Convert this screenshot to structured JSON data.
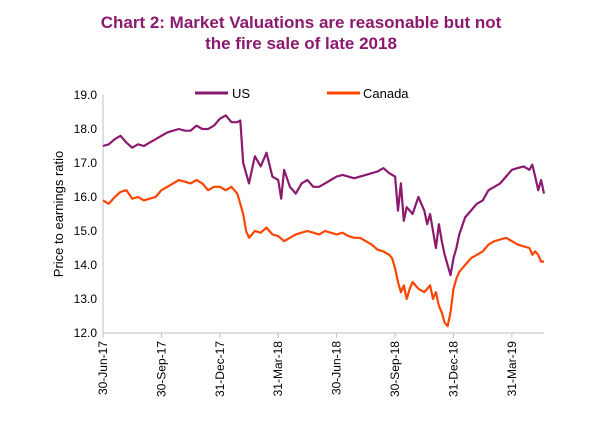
{
  "chart_data": {
    "type": "line",
    "title_line1": "Chart 2: Market Valuations are reasonable but not",
    "title_line2": "the fire sale of late 2018",
    "xlabel": "",
    "ylabel": "Price to earnings ratio",
    "ylim": [
      12.0,
      19.0
    ],
    "yticks": [
      "12.0",
      "13.0",
      "14.0",
      "15.0",
      "16.0",
      "17.0",
      "18.0",
      "19.0"
    ],
    "xticks": [
      "30-Jun-17",
      "30-Sep-17",
      "31-Dec-17",
      "31-Mar-18",
      "30-Jun-18",
      "30-Sep-18",
      "31-Dec-18",
      "31-Mar-19"
    ],
    "x_range": [
      0,
      7.55
    ],
    "legend": [
      {
        "name": "US",
        "color": "#8b1a6e"
      },
      {
        "name": "Canada",
        "color": "#ff4500"
      }
    ],
    "series": [
      {
        "name": "US",
        "color": "#8b1a6e",
        "points": [
          [
            0,
            17.5
          ],
          [
            0.1,
            17.55
          ],
          [
            0.2,
            17.7
          ],
          [
            0.3,
            17.8
          ],
          [
            0.4,
            17.6
          ],
          [
            0.5,
            17.45
          ],
          [
            0.6,
            17.55
          ],
          [
            0.7,
            17.5
          ],
          [
            0.8,
            17.6
          ],
          [
            0.9,
            17.7
          ],
          [
            1.0,
            17.8
          ],
          [
            1.1,
            17.9
          ],
          [
            1.2,
            17.95
          ],
          [
            1.3,
            18.0
          ],
          [
            1.4,
            17.95
          ],
          [
            1.5,
            17.95
          ],
          [
            1.6,
            18.1
          ],
          [
            1.7,
            18.0
          ],
          [
            1.8,
            18.0
          ],
          [
            1.9,
            18.1
          ],
          [
            2.0,
            18.3
          ],
          [
            2.1,
            18.4
          ],
          [
            2.2,
            18.2
          ],
          [
            2.3,
            18.2
          ],
          [
            2.35,
            18.25
          ],
          [
            2.4,
            17.0
          ],
          [
            2.5,
            16.4
          ],
          [
            2.55,
            16.8
          ],
          [
            2.6,
            17.2
          ],
          [
            2.7,
            16.9
          ],
          [
            2.8,
            17.3
          ],
          [
            2.9,
            16.6
          ],
          [
            3.0,
            16.5
          ],
          [
            3.05,
            15.95
          ],
          [
            3.1,
            16.8
          ],
          [
            3.2,
            16.3
          ],
          [
            3.3,
            16.1
          ],
          [
            3.4,
            16.4
          ],
          [
            3.5,
            16.5
          ],
          [
            3.6,
            16.3
          ],
          [
            3.7,
            16.3
          ],
          [
            3.8,
            16.4
          ],
          [
            3.9,
            16.5
          ],
          [
            4.0,
            16.6
          ],
          [
            4.1,
            16.65
          ],
          [
            4.2,
            16.6
          ],
          [
            4.3,
            16.55
          ],
          [
            4.4,
            16.6
          ],
          [
            4.5,
            16.65
          ],
          [
            4.6,
            16.7
          ],
          [
            4.7,
            16.75
          ],
          [
            4.8,
            16.85
          ],
          [
            4.9,
            16.7
          ],
          [
            5.0,
            16.6
          ],
          [
            5.05,
            15.6
          ],
          [
            5.1,
            16.4
          ],
          [
            5.15,
            15.3
          ],
          [
            5.2,
            15.7
          ],
          [
            5.3,
            15.5
          ],
          [
            5.4,
            16.0
          ],
          [
            5.5,
            15.6
          ],
          [
            5.55,
            15.2
          ],
          [
            5.6,
            15.5
          ],
          [
            5.7,
            14.5
          ],
          [
            5.75,
            15.2
          ],
          [
            5.8,
            14.7
          ],
          [
            5.85,
            14.3
          ],
          [
            5.9,
            14.0
          ],
          [
            5.95,
            13.7
          ],
          [
            6.0,
            14.2
          ],
          [
            6.05,
            14.5
          ],
          [
            6.1,
            14.9
          ],
          [
            6.2,
            15.4
          ],
          [
            6.3,
            15.6
          ],
          [
            6.4,
            15.8
          ],
          [
            6.5,
            15.9
          ],
          [
            6.6,
            16.2
          ],
          [
            6.7,
            16.3
          ],
          [
            6.8,
            16.4
          ],
          [
            6.9,
            16.6
          ],
          [
            7.0,
            16.8
          ],
          [
            7.1,
            16.85
          ],
          [
            7.2,
            16.9
          ],
          [
            7.3,
            16.8
          ],
          [
            7.35,
            16.95
          ],
          [
            7.4,
            16.6
          ],
          [
            7.45,
            16.2
          ],
          [
            7.5,
            16.5
          ],
          [
            7.55,
            16.1
          ]
        ]
      },
      {
        "name": "Canada",
        "color": "#ff4500",
        "points": [
          [
            0,
            15.9
          ],
          [
            0.1,
            15.8
          ],
          [
            0.2,
            16.0
          ],
          [
            0.3,
            16.15
          ],
          [
            0.4,
            16.2
          ],
          [
            0.5,
            15.95
          ],
          [
            0.6,
            16.0
          ],
          [
            0.7,
            15.9
          ],
          [
            0.8,
            15.95
          ],
          [
            0.9,
            16.0
          ],
          [
            1.0,
            16.2
          ],
          [
            1.1,
            16.3
          ],
          [
            1.2,
            16.4
          ],
          [
            1.3,
            16.5
          ],
          [
            1.4,
            16.45
          ],
          [
            1.5,
            16.4
          ],
          [
            1.6,
            16.5
          ],
          [
            1.7,
            16.4
          ],
          [
            1.8,
            16.2
          ],
          [
            1.9,
            16.3
          ],
          [
            2.0,
            16.3
          ],
          [
            2.1,
            16.2
          ],
          [
            2.2,
            16.3
          ],
          [
            2.3,
            16.1
          ],
          [
            2.4,
            15.5
          ],
          [
            2.45,
            15.0
          ],
          [
            2.5,
            14.8
          ],
          [
            2.6,
            15.0
          ],
          [
            2.7,
            14.95
          ],
          [
            2.8,
            15.1
          ],
          [
            2.9,
            14.9
          ],
          [
            3.0,
            14.85
          ],
          [
            3.1,
            14.7
          ],
          [
            3.2,
            14.8
          ],
          [
            3.3,
            14.9
          ],
          [
            3.4,
            14.95
          ],
          [
            3.5,
            15.0
          ],
          [
            3.6,
            14.95
          ],
          [
            3.7,
            14.9
          ],
          [
            3.8,
            15.0
          ],
          [
            3.9,
            14.95
          ],
          [
            4.0,
            14.9
          ],
          [
            4.1,
            14.95
          ],
          [
            4.2,
            14.85
          ],
          [
            4.3,
            14.8
          ],
          [
            4.4,
            14.8
          ],
          [
            4.5,
            14.7
          ],
          [
            4.6,
            14.6
          ],
          [
            4.7,
            14.45
          ],
          [
            4.8,
            14.4
          ],
          [
            4.9,
            14.3
          ],
          [
            4.95,
            14.2
          ],
          [
            5.0,
            13.9
          ],
          [
            5.05,
            13.5
          ],
          [
            5.1,
            13.2
          ],
          [
            5.15,
            13.4
          ],
          [
            5.2,
            13.0
          ],
          [
            5.25,
            13.3
          ],
          [
            5.3,
            13.5
          ],
          [
            5.4,
            13.3
          ],
          [
            5.5,
            13.2
          ],
          [
            5.6,
            13.4
          ],
          [
            5.65,
            13.0
          ],
          [
            5.7,
            13.2
          ],
          [
            5.75,
            12.8
          ],
          [
            5.8,
            12.6
          ],
          [
            5.85,
            12.3
          ],
          [
            5.9,
            12.2
          ],
          [
            5.95,
            12.6
          ],
          [
            6.0,
            13.3
          ],
          [
            6.05,
            13.6
          ],
          [
            6.1,
            13.8
          ],
          [
            6.2,
            14.0
          ],
          [
            6.3,
            14.2
          ],
          [
            6.4,
            14.3
          ],
          [
            6.5,
            14.4
          ],
          [
            6.6,
            14.6
          ],
          [
            6.7,
            14.7
          ],
          [
            6.8,
            14.75
          ],
          [
            6.9,
            14.8
          ],
          [
            7.0,
            14.7
          ],
          [
            7.1,
            14.6
          ],
          [
            7.2,
            14.55
          ],
          [
            7.3,
            14.5
          ],
          [
            7.35,
            14.3
          ],
          [
            7.4,
            14.4
          ],
          [
            7.45,
            14.3
          ],
          [
            7.5,
            14.1
          ],
          [
            7.55,
            14.1
          ]
        ]
      }
    ]
  }
}
